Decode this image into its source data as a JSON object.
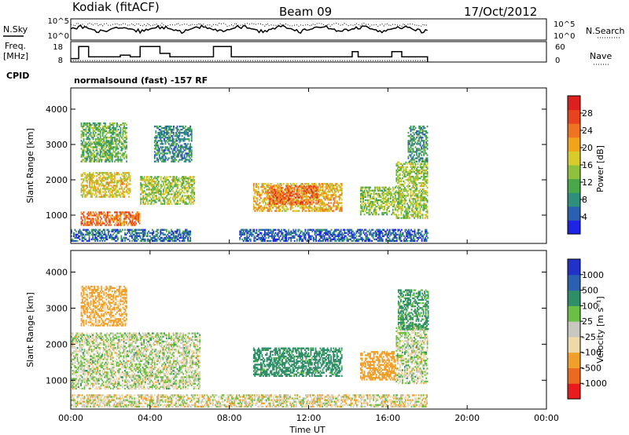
{
  "header": {
    "station": "Kodiak (fitACF)",
    "beam": "Beam 09",
    "date": "17/Oct/2012"
  },
  "summary_panel": {
    "left_top_label": "N.Sky",
    "left_mid_label_line1": "Freq.",
    "left_mid_label_line2": "[MHz]",
    "cpid_label": "CPID",
    "right_top_label": "N.Search",
    "right_mid_label": "Nave",
    "nsky_ticks": [
      "10^5",
      "10^0"
    ],
    "nsearch_ticks": [
      "10^5",
      "10^0"
    ],
    "freq_ticks": [
      "18",
      "8"
    ],
    "nave_ticks": [
      "60",
      "0"
    ],
    "cpid_text": "normalsound (fast) -157 RF"
  },
  "chart_data": [
    {
      "type": "heatmap",
      "name": "power",
      "title": "",
      "xlabel": "",
      "ylabel": "Slant Range [km]",
      "xlim_hours": [
        0,
        24
      ],
      "ylim_km": [
        200,
        4600
      ],
      "y_ticks": [
        "1000",
        "2000",
        "3000",
        "4000"
      ],
      "colorbar": {
        "label": "Power [dB]",
        "tick_labels": [
          "4",
          "8",
          "12",
          "16",
          "20",
          "24",
          "28"
        ],
        "tick_values": [
          4,
          8,
          12,
          16,
          20,
          24,
          28
        ],
        "range": [
          0,
          32
        ],
        "colors": [
          "#1f23e6",
          "#2b5fb0",
          "#2e8f7a",
          "#48a84a",
          "#8fc23c",
          "#d8cc2a",
          "#f2a419",
          "#ee7422",
          "#e8421f",
          "#dc1f1f"
        ]
      },
      "regions": [
        {
          "t0": 0.5,
          "t1": 3.5,
          "r0": 700,
          "r1": 1100,
          "level": 24
        },
        {
          "t0": 0.5,
          "t1": 3.0,
          "r0": 1500,
          "r1": 2200,
          "level": 18
        },
        {
          "t0": 0.5,
          "t1": 2.8,
          "r0": 2500,
          "r1": 3600,
          "level": 12
        },
        {
          "t0": 3.5,
          "t1": 6.2,
          "r0": 1300,
          "r1": 2100,
          "level": 15
        },
        {
          "t0": 4.2,
          "t1": 6.1,
          "r0": 2500,
          "r1": 3500,
          "level": 8
        },
        {
          "t0": 9.2,
          "t1": 13.7,
          "r0": 1100,
          "r1": 1900,
          "level": 20
        },
        {
          "t0": 10.0,
          "t1": 12.5,
          "r0": 1300,
          "r1": 1800,
          "level": 25
        },
        {
          "t0": 14.6,
          "t1": 16.4,
          "r0": 1000,
          "r1": 1800,
          "level": 14
        },
        {
          "t0": 16.4,
          "t1": 18.0,
          "r0": 900,
          "r1": 2500,
          "level": 15
        },
        {
          "t0": 17.0,
          "t1": 18.0,
          "r0": 2500,
          "r1": 3500,
          "level": 9
        },
        {
          "t0": 8.5,
          "t1": 18.0,
          "r0": 250,
          "r1": 600,
          "level": 5
        },
        {
          "t0": 0.0,
          "t1": 6.0,
          "r0": 250,
          "r1": 600,
          "level": 6
        }
      ]
    },
    {
      "type": "heatmap",
      "name": "velocity",
      "title": "",
      "xlabel": "Time UT",
      "ylabel": "Slant Range [km]",
      "xlim_hours": [
        0,
        24
      ],
      "ylim_km": [
        200,
        4600
      ],
      "y_ticks": [
        "1000",
        "2000",
        "3000",
        "4000"
      ],
      "x_ticks": [
        "00:00",
        "04:00",
        "08:00",
        "12:00",
        "16:00",
        "20:00",
        "00:00"
      ],
      "colorbar": {
        "label": "Velocity [m s⁻¹]",
        "tick_labels": [
          "-1000",
          "-500",
          "-100",
          "-25",
          "25",
          "100",
          "500",
          "1000"
        ],
        "colors": [
          "#e81c1c",
          "#ec6a1f",
          "#f0a02a",
          "#efd9a8",
          "#c8c8c0",
          "#69c044",
          "#2f8e68",
          "#2b5fb0",
          "#2232c8"
        ]
      },
      "regions": [
        {
          "t0": 0.0,
          "t1": 6.5,
          "r0": 750,
          "r1": 2300,
          "vel": 0
        },
        {
          "t0": 0.5,
          "t1": 2.8,
          "r0": 2500,
          "r1": 3600,
          "vel": -150
        },
        {
          "t0": 9.2,
          "t1": 13.7,
          "r0": 1100,
          "r1": 1900,
          "vel": 200
        },
        {
          "t0": 14.6,
          "t1": 16.4,
          "r0": 1000,
          "r1": 1800,
          "vel": -300
        },
        {
          "t0": 16.4,
          "t1": 18.0,
          "r0": 900,
          "r1": 2500,
          "vel": 0
        },
        {
          "t0": 16.5,
          "t1": 18.0,
          "r0": 2400,
          "r1": 3500,
          "vel": 150
        },
        {
          "t0": 0.0,
          "t1": 18.0,
          "r0": 250,
          "r1": 600,
          "vel": -40
        }
      ]
    }
  ]
}
